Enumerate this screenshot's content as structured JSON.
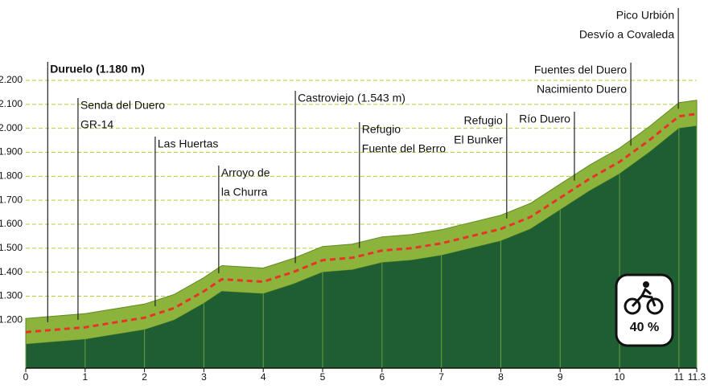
{
  "chart_data": {
    "type": "area",
    "x": [
      0,
      0.5,
      1,
      1.5,
      2,
      2.5,
      3,
      3.3,
      4,
      4.5,
      5,
      5.5,
      6,
      6.5,
      7,
      7.5,
      8,
      8.5,
      9,
      9.5,
      10,
      10.5,
      11,
      11.3
    ],
    "values": [
      1100,
      1110,
      1120,
      1140,
      1160,
      1200,
      1270,
      1320,
      1310,
      1350,
      1400,
      1410,
      1440,
      1450,
      1470,
      1500,
      1530,
      1580,
      1660,
      1740,
      1810,
      1900,
      2000,
      2010
    ],
    "color": "#1f5e32",
    "surface_color": "#8cb43c",
    "trail_color": "#e8322a",
    "xlim": [
      0,
      11.3
    ],
    "xticks": [
      0,
      1,
      2,
      3,
      4,
      5,
      6,
      7,
      8,
      9,
      10,
      11,
      11.3
    ],
    "ylim": [
      1000,
      2200
    ],
    "yticks": [
      {
        "value": 1200,
        "label": "1.200"
      },
      {
        "value": 1300,
        "label": "1.300"
      },
      {
        "value": 1400,
        "label": "1.400"
      },
      {
        "value": 1500,
        "label": "1.500"
      },
      {
        "value": 1600,
        "label": "1.600"
      },
      {
        "value": 1700,
        "label": "1.700"
      },
      {
        "value": 1800,
        "label": "1.800"
      },
      {
        "value": 1900,
        "label": "1.900"
      },
      {
        "value": 2000,
        "label": "2.000"
      },
      {
        "value": 2100,
        "label": "2.100"
      },
      {
        "value": 2200,
        "label": "2.200"
      }
    ],
    "grid": true,
    "annotations": [
      {
        "x": 0.37,
        "lines": [
          "Duruelo (1.180 m)"
        ]
      },
      {
        "x": 0.88,
        "lines": [
          "Senda del Duero",
          "GR-14"
        ]
      },
      {
        "x": 2.18,
        "lines": [
          "Las Huertas"
        ]
      },
      {
        "x": 3.25,
        "lines": [
          "Arroyo de",
          "la Churra"
        ]
      },
      {
        "x": 4.54,
        "lines": [
          "Castroviejo (1.543 m)"
        ]
      },
      {
        "x": 5.62,
        "lines": [
          "Refugio",
          "Fuente del Berro"
        ]
      },
      {
        "x": 8.1,
        "lines": [
          "Refugio",
          "El Bunker"
        ]
      },
      {
        "x": 9.24,
        "lines": [
          "Río Duero"
        ]
      },
      {
        "x": 10.19,
        "lines": [
          "Fuentes del Duero",
          "Nacimiento Duero"
        ]
      },
      {
        "x": 10.99,
        "lines": [
          "Pico Urbión",
          "Desvío a Covaleda"
        ]
      }
    ],
    "badge": "40 %"
  }
}
